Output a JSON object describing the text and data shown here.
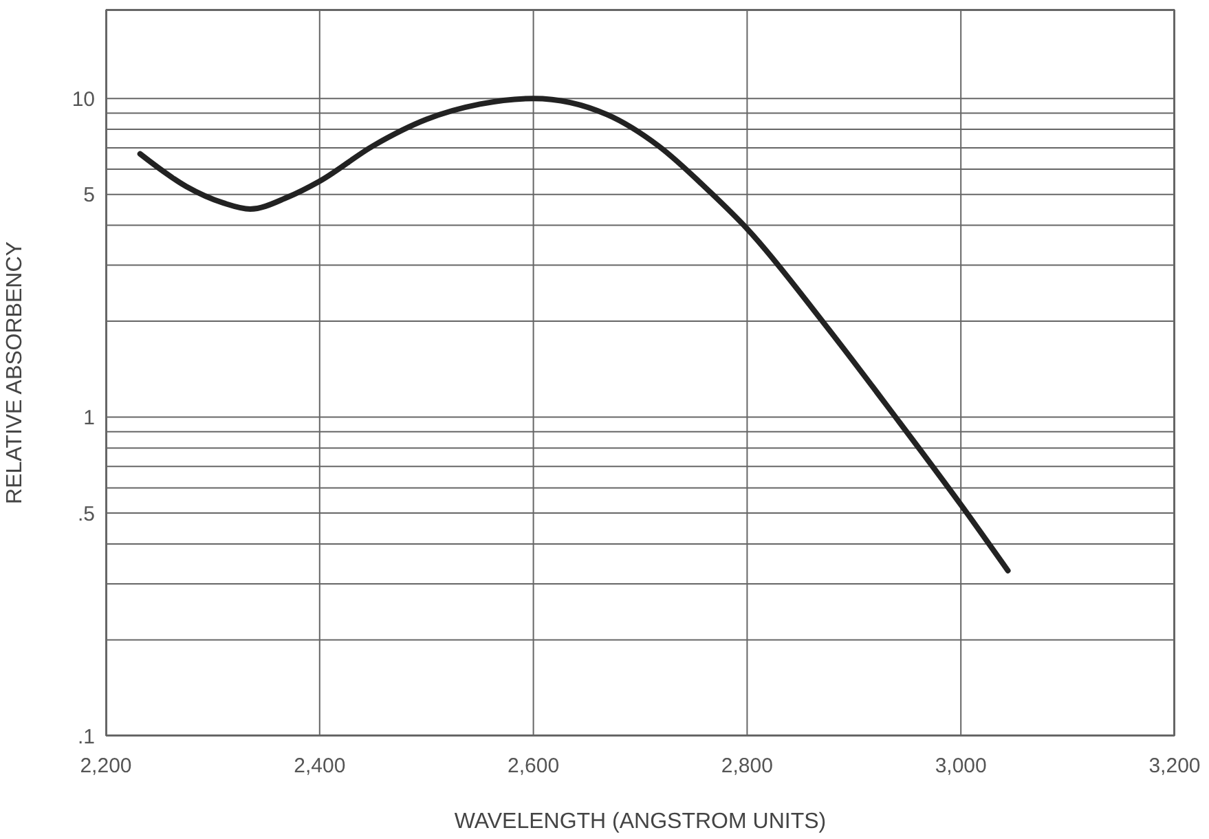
{
  "chart_data": {
    "type": "line",
    "xlabel": "WAVELENGTH (ANGSTROM UNITS)",
    "ylabel": "RELATIVE ABSORBENCY",
    "log": "y",
    "grid": true,
    "line_style": "solid",
    "xlim": [
      2200,
      3200
    ],
    "xticks": [
      {
        "value": 2200,
        "label": "2,200"
      },
      {
        "value": 2400,
        "label": "2,400"
      },
      {
        "value": 2600,
        "label": "2,600"
      },
      {
        "value": 2800,
        "label": "2,800"
      },
      {
        "value": 3000,
        "label": "3,000"
      },
      {
        "value": 3200,
        "label": "3,200"
      }
    ],
    "ylim": [
      0.1,
      19
    ],
    "yticks": [
      {
        "value": 0.1,
        "label": ".1"
      },
      {
        "value": 0.2,
        "label": null
      },
      {
        "value": 0.3,
        "label": null
      },
      {
        "value": 0.4,
        "label": null
      },
      {
        "value": 0.5,
        "label": ".5"
      },
      {
        "value": 0.6,
        "label": null
      },
      {
        "value": 0.7,
        "label": null
      },
      {
        "value": 0.8,
        "label": null
      },
      {
        "value": 0.9,
        "label": null
      },
      1,
      {
        "value": 2,
        "label": null
      },
      {
        "value": 3,
        "label": null
      },
      {
        "value": 4,
        "label": null
      },
      5,
      {
        "value": 6,
        "label": null
      },
      {
        "value": 7,
        "label": null
      },
      {
        "value": 8,
        "label": null
      },
      {
        "value": 9,
        "label": null
      },
      10
    ],
    "x": [
      2232,
      2275,
      2310,
      2335,
      2370,
      2400,
      2450,
      2500,
      2550,
      2600,
      2669,
      2717,
      2765,
      2800,
      2873,
      2937,
      3002,
      3044
    ],
    "series": [
      {
        "color": "#222222",
        "values": [
          6.7,
          5.3,
          4.7,
          4.5,
          4.9,
          5.5,
          7.1,
          8.6,
          9.6,
          10,
          8.9,
          7.1,
          5.1,
          3.9,
          1.95,
          1.02,
          0.52,
          0.33
        ]
      }
    ]
  }
}
